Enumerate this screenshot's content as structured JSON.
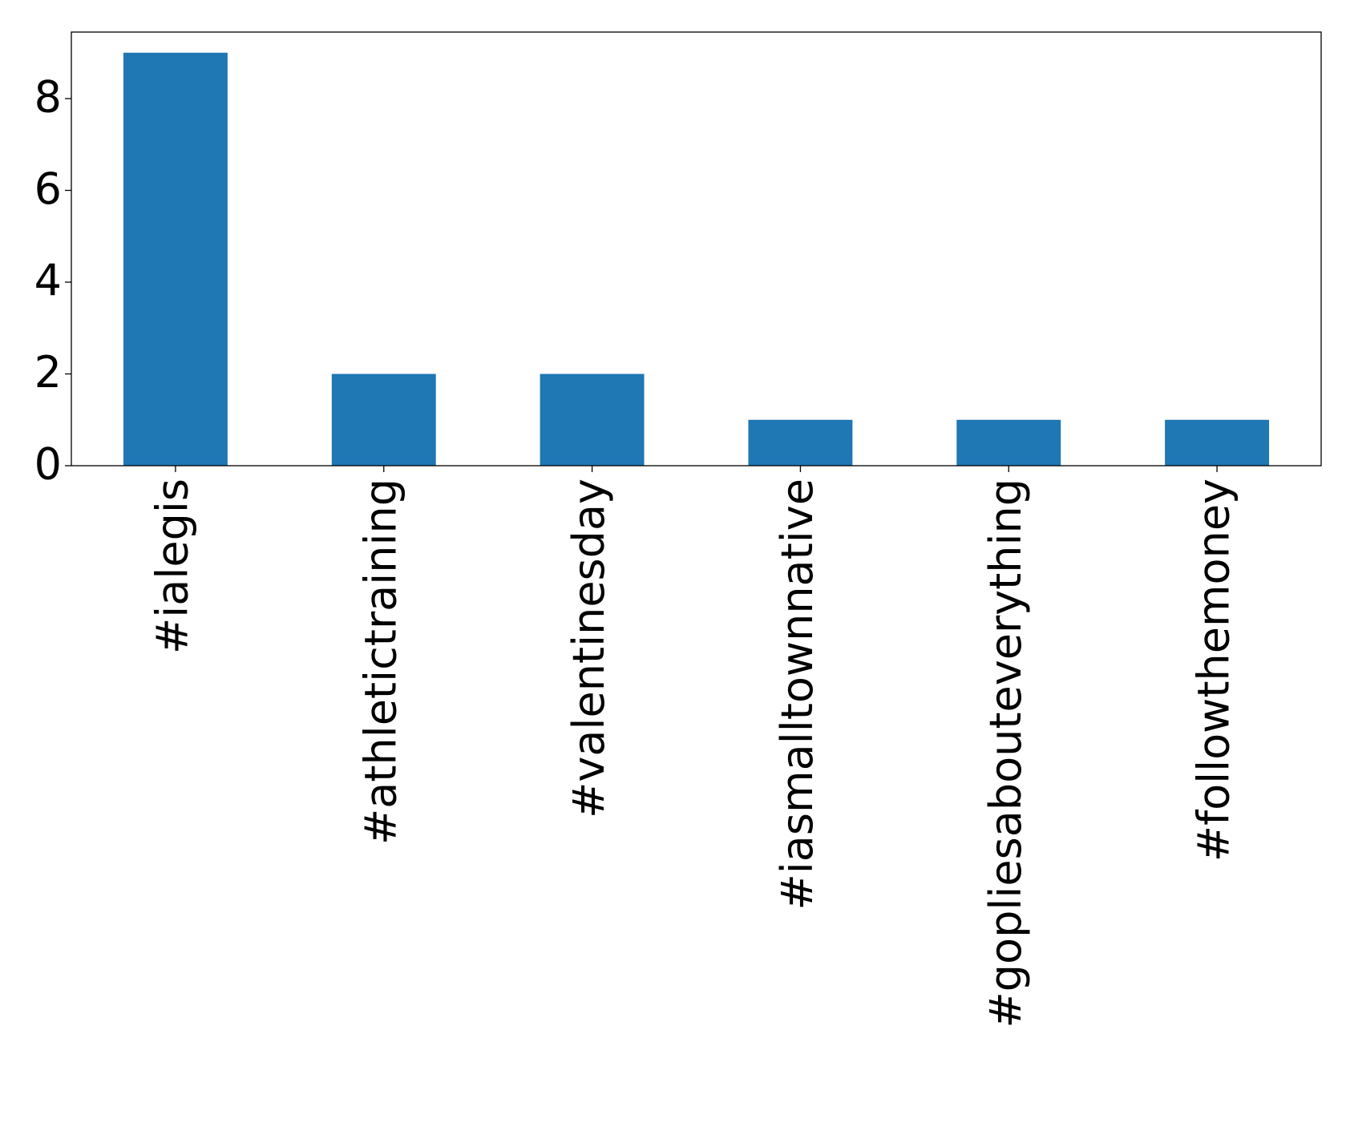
{
  "chart_data": {
    "type": "bar",
    "categories": [
      "#ialegis",
      "#athletictraining",
      "#valentinesday",
      "#iasmalltownnative",
      "#gopliesabouteverything",
      "#followthemoney"
    ],
    "values": [
      9,
      2,
      2,
      1,
      1,
      1
    ],
    "color": "#1f77b4",
    "ylim": [
      0,
      9.45
    ],
    "yticks": [
      0,
      2,
      4,
      6,
      8
    ],
    "grid": false
  }
}
